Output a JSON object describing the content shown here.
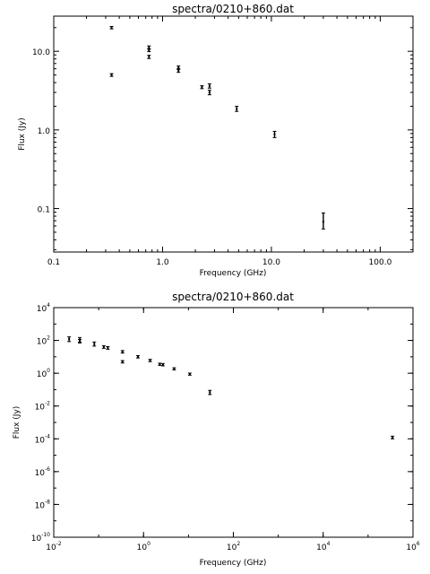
{
  "chart_data": [
    {
      "type": "scatter",
      "title": "spectra/0210+860.dat",
      "xlabel": "Frequency (GHz)",
      "ylabel": "Flux (Jy)",
      "xscale": "log",
      "yscale": "log",
      "xlim": [
        0.1,
        200
      ],
      "ylim": [
        0.028,
        28
      ],
      "xticks": [
        {
          "v": 0.1,
          "label": "0.1"
        },
        {
          "v": 1,
          "label": "1.0"
        },
        {
          "v": 10,
          "label": "10.0"
        },
        {
          "v": 100,
          "label": "100.0"
        }
      ],
      "yticks": [
        {
          "v": 0.1,
          "label": "0.1"
        },
        {
          "v": 1,
          "label": "1.0"
        },
        {
          "v": 10,
          "label": "10.0"
        }
      ],
      "points": [
        {
          "x": 0.34,
          "y": 20.0,
          "lo": 19.3,
          "hi": 20.7
        },
        {
          "x": 0.34,
          "y": 5.0,
          "lo": 4.8,
          "hi": 5.2
        },
        {
          "x": 0.75,
          "y": 11.2,
          "lo": 10.7,
          "hi": 11.7
        },
        {
          "x": 0.75,
          "y": 10.3,
          "lo": 9.9,
          "hi": 10.7
        },
        {
          "x": 0.75,
          "y": 8.5,
          "lo": 8.1,
          "hi": 8.9
        },
        {
          "x": 1.4,
          "y": 6.2,
          "lo": 5.9,
          "hi": 6.5
        },
        {
          "x": 1.4,
          "y": 5.7,
          "lo": 5.4,
          "hi": 6.0
        },
        {
          "x": 2.3,
          "y": 3.5,
          "lo": 3.35,
          "hi": 3.65
        },
        {
          "x": 2.7,
          "y": 3.6,
          "lo": 3.4,
          "hi": 3.85
        },
        {
          "x": 2.7,
          "y": 3.0,
          "lo": 2.8,
          "hi": 3.2
        },
        {
          "x": 4.8,
          "y": 1.85,
          "lo": 1.72,
          "hi": 2.0
        },
        {
          "x": 10.7,
          "y": 0.88,
          "lo": 0.8,
          "hi": 0.96
        },
        {
          "x": 30,
          "y": 0.068,
          "lo": 0.055,
          "hi": 0.088
        }
      ]
    },
    {
      "type": "scatter",
      "title": "spectra/0210+860.dat",
      "xlabel": "Frequency (GHz)",
      "ylabel": "Flux (Jy)",
      "xscale": "log",
      "yscale": "log",
      "xlim": [
        0.01,
        1000000
      ],
      "ylim": [
        1e-10,
        10000
      ],
      "xticks": [
        {
          "v": 0.01,
          "base": "10",
          "exp": "-2"
        },
        {
          "v": 1,
          "base": "10",
          "exp": "0"
        },
        {
          "v": 100,
          "base": "10",
          "exp": "2"
        },
        {
          "v": 10000,
          "base": "10",
          "exp": "4"
        },
        {
          "v": 1000000,
          "base": "10",
          "exp": "6"
        }
      ],
      "yticks": [
        {
          "v": 1e-10,
          "base": "10",
          "exp": "-10"
        },
        {
          "v": 1e-08,
          "base": "10",
          "exp": "-8"
        },
        {
          "v": 1e-06,
          "base": "10",
          "exp": "-6"
        },
        {
          "v": 0.0001,
          "base": "10",
          "exp": "-4"
        },
        {
          "v": 0.01,
          "base": "10",
          "exp": "-2"
        },
        {
          "v": 1,
          "base": "10",
          "exp": "0"
        },
        {
          "v": 100,
          "base": "10",
          "exp": "2"
        },
        {
          "v": 10000,
          "base": "10",
          "exp": "4"
        }
      ],
      "points": [
        {
          "x": 0.022,
          "y": 120,
          "lo": 85,
          "hi": 165
        },
        {
          "x": 0.038,
          "y": 110,
          "lo": 80,
          "hi": 150
        },
        {
          "x": 0.038,
          "y": 90,
          "lo": 70,
          "hi": 115
        },
        {
          "x": 0.08,
          "y": 60,
          "lo": 45,
          "hi": 80
        },
        {
          "x": 0.13,
          "y": 40,
          "lo": 33,
          "hi": 48
        },
        {
          "x": 0.16,
          "y": 35,
          "lo": 29,
          "hi": 42
        },
        {
          "x": 0.34,
          "y": 20,
          "lo": 17,
          "hi": 24
        },
        {
          "x": 0.34,
          "y": 5,
          "lo": 4.2,
          "hi": 5.9
        },
        {
          "x": 0.75,
          "y": 10,
          "lo": 8.5,
          "hi": 11.8
        },
        {
          "x": 1.4,
          "y": 6,
          "lo": 5.1,
          "hi": 7.0
        },
        {
          "x": 2.3,
          "y": 3.5,
          "lo": 3.0,
          "hi": 4.1
        },
        {
          "x": 2.7,
          "y": 3.3,
          "lo": 2.8,
          "hi": 3.9
        },
        {
          "x": 4.8,
          "y": 1.85,
          "lo": 1.6,
          "hi": 2.15
        },
        {
          "x": 10.7,
          "y": 0.88,
          "lo": 0.76,
          "hi": 1.02
        },
        {
          "x": 30,
          "y": 0.068,
          "lo": 0.05,
          "hi": 0.09
        },
        {
          "x": 350000,
          "y": 0.00012,
          "lo": 0.0001,
          "hi": 0.000145
        }
      ]
    }
  ]
}
